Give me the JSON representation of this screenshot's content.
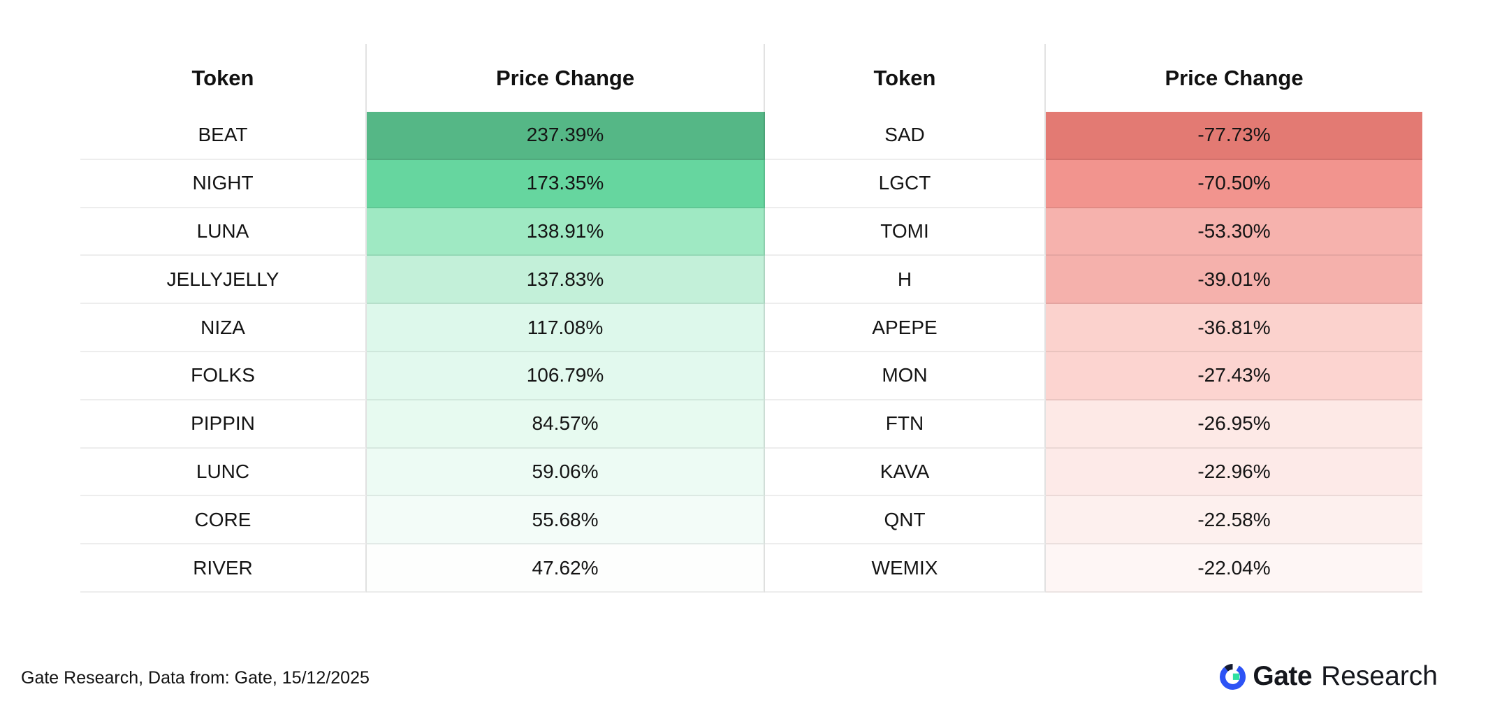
{
  "chart_data": {
    "type": "table",
    "columns": [
      "Token",
      "Price Change",
      "Token",
      "Price Change"
    ],
    "gainers": [
      {
        "token": "BEAT",
        "change": "237.39%",
        "bg": "#55b786"
      },
      {
        "token": "NIGHT",
        "change": "173.35%",
        "bg": "#66d69f"
      },
      {
        "token": "LUNA",
        "change": "138.91%",
        "bg": "#9fe9c3"
      },
      {
        "token": "JELLYJELLY",
        "change": "137.83%",
        "bg": "#c3f0d9"
      },
      {
        "token": "NIZA",
        "change": "117.08%",
        "bg": "#ddf8eb"
      },
      {
        "token": "FOLKS",
        "change": "106.79%",
        "bg": "#e2f9ee"
      },
      {
        "token": "PIPPIN",
        "change": "84.57%",
        "bg": "#e7faf0"
      },
      {
        "token": "LUNC",
        "change": "59.06%",
        "bg": "#edfbf4"
      },
      {
        "token": "CORE",
        "change": "55.68%",
        "bg": "#f3fcf8"
      },
      {
        "token": "RIVER",
        "change": "47.62%",
        "bg": "#fdfefd"
      }
    ],
    "losers": [
      {
        "token": "SAD",
        "change": "-77.73%",
        "bg": "#e37a73"
      },
      {
        "token": "LGCT",
        "change": "-70.50%",
        "bg": "#f2948e"
      },
      {
        "token": "TOMI",
        "change": "-53.30%",
        "bg": "#f6b2ad"
      },
      {
        "token": "H",
        "change": "-39.01%",
        "bg": "#f5b1ac"
      },
      {
        "token": "APEPE",
        "change": "-36.81%",
        "bg": "#fbd2cd"
      },
      {
        "token": "MON",
        "change": "-27.43%",
        "bg": "#fcd4d0"
      },
      {
        "token": "FTN",
        "change": "-26.95%",
        "bg": "#fde9e6"
      },
      {
        "token": "KAVA",
        "change": "-22.96%",
        "bg": "#fdeae8"
      },
      {
        "token": "QNT",
        "change": "-22.58%",
        "bg": "#fdf0ee"
      },
      {
        "token": "WEMIX",
        "change": "-22.04%",
        "bg": "#fef6f5"
      }
    ]
  },
  "style": {
    "header_bg": "#e9e9e9",
    "positive_accent": "#55b786",
    "negative_accent": "#e37a73"
  },
  "footer": {
    "source_text": "Gate Research, Data from: Gate, 15/12/2025",
    "logo": {
      "brand": "Gate",
      "suffix": "Research",
      "blue": "#2d53f5",
      "navy": "#151b30",
      "green": "#30e0a1"
    }
  }
}
